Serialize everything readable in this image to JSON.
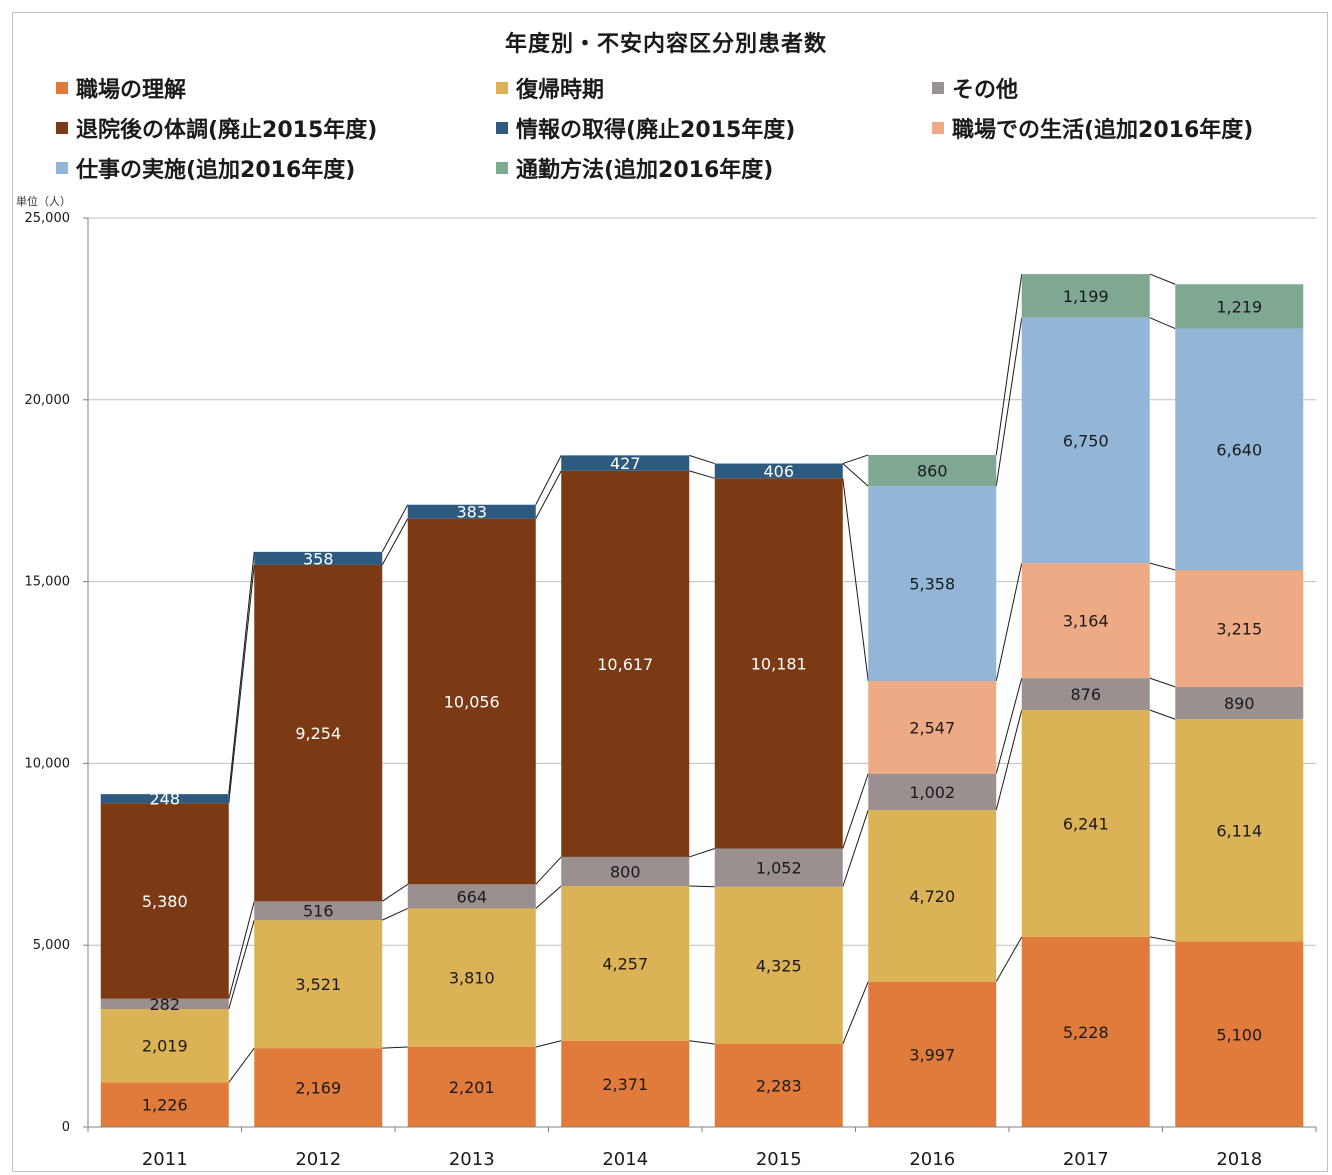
{
  "chart_data": {
    "type": "bar",
    "stacked": true,
    "title": "年度別・不安内容区分別患者数",
    "unit_label": "単位（人）",
    "categories": [
      "2011",
      "2012",
      "2013",
      "2014",
      "2015",
      "2016",
      "2017",
      "2018"
    ],
    "ylim": [
      0,
      25000
    ],
    "yticks": [
      0,
      5000,
      10000,
      15000,
      20000,
      25000
    ],
    "ytick_labels": [
      "0",
      "5,000",
      "10,000",
      "15,000",
      "20,000",
      "25,000"
    ],
    "grid": true,
    "legend_position": "top",
    "series": [
      {
        "name": "職場の理解",
        "color": "#e07b3c",
        "label_color": "#1a1a1a",
        "values": [
          1226,
          2169,
          2201,
          2371,
          2283,
          3997,
          5228,
          5100
        ],
        "labels": [
          "1,226",
          "2,169",
          "2,201",
          "2,371",
          "2,283",
          "3,997",
          "5,228",
          "5,100"
        ]
      },
      {
        "name": "復帰時期",
        "color": "#dcb256",
        "label_color": "#1a1a1a",
        "values": [
          2019,
          3521,
          3810,
          4257,
          4325,
          4720,
          6241,
          6114
        ],
        "labels": [
          "2,019",
          "3,521",
          "3,810",
          "4,257",
          "4,325",
          "4,720",
          "6,241",
          "6,114"
        ]
      },
      {
        "name": "その他",
        "color": "#9b9090",
        "label_color": "#1a1a1a",
        "values": [
          282,
          516,
          664,
          800,
          1052,
          1002,
          876,
          890
        ],
        "labels": [
          "282",
          "516",
          "664",
          "800",
          "1,052",
          "1,002",
          "876",
          "890"
        ]
      },
      {
        "name": "退院後の体調(廃止2015年度)",
        "color": "#7b3a14",
        "label_color": "#ffffff",
        "values": [
          5380,
          9254,
          10056,
          10617,
          10181,
          null,
          null,
          null
        ],
        "labels": [
          "5,380",
          "9,254",
          "10,056",
          "10,617",
          "10,181",
          "",
          "",
          ""
        ]
      },
      {
        "name": "情報の取得(廃止2015年度)",
        "color": "#2e5a80",
        "label_color": "#ffffff",
        "values": [
          248,
          358,
          383,
          427,
          406,
          null,
          null,
          null
        ],
        "labels": [
          "248",
          "358",
          "383",
          "427",
          "406",
          "",
          "",
          ""
        ]
      },
      {
        "name": "職場での生活(追加2016年度)",
        "color": "#eeaa85",
        "label_color": "#1a1a1a",
        "values": [
          null,
          null,
          null,
          null,
          null,
          2547,
          3164,
          3215
        ],
        "labels": [
          "",
          "",
          "",
          "",
          "",
          "2,547",
          "3,164",
          "3,215"
        ]
      },
      {
        "name": "仕事の実施(追加2016年度)",
        "color": "#93b6d8",
        "label_color": "#1a1a1a",
        "values": [
          null,
          null,
          null,
          null,
          null,
          5358,
          6750,
          6640
        ],
        "labels": [
          "",
          "",
          "",
          "",
          "",
          "5,358",
          "6,750",
          "6,640"
        ]
      },
      {
        "name": "通勤方法(追加2016年度)",
        "color": "#7fa893",
        "label_color": "#1a1a1a",
        "values": [
          null,
          null,
          null,
          null,
          null,
          860,
          1199,
          1219
        ],
        "labels": [
          "",
          "",
          "",
          "",
          "",
          "860",
          "1,199",
          "1,219"
        ]
      }
    ]
  }
}
